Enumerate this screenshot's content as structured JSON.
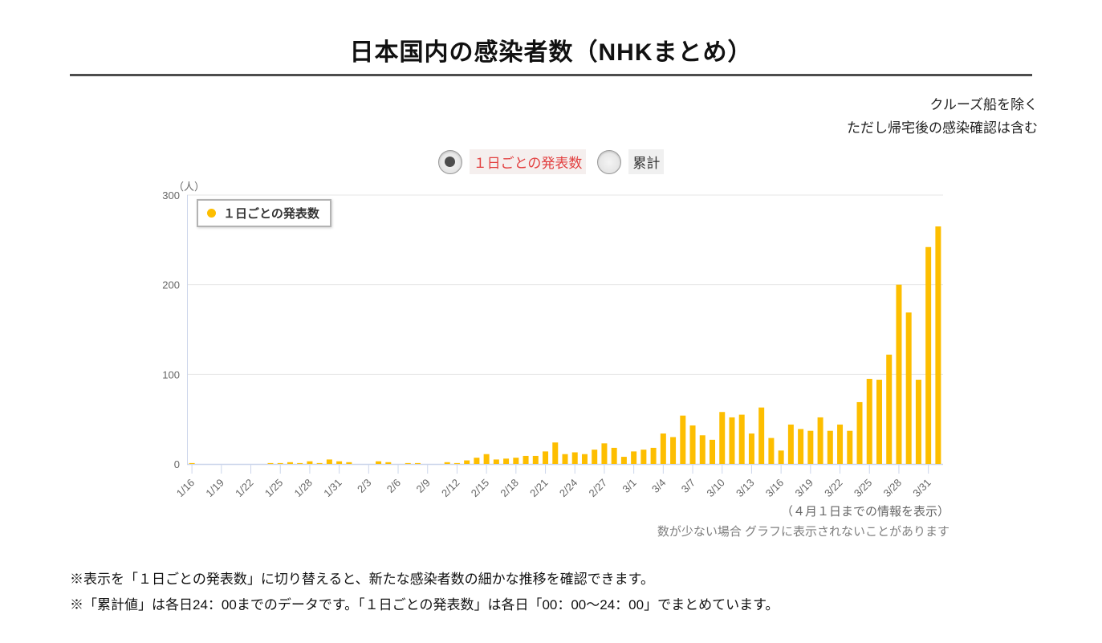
{
  "header": {
    "title": "日本国内の感染者数（NHKまとめ）"
  },
  "notes": {
    "exclusion_line1": "クルーズ船を除く",
    "exclusion_line2": "ただし帰宅後の感染確認は含む",
    "data_through": "（４月１日までの情報を表示）",
    "small_numbers": "数が少ない場合 グラフに表示されないことがあります"
  },
  "controls": {
    "daily": {
      "label": "１日ごとの発表数",
      "selected": true,
      "color": "#e23e3e"
    },
    "cumulative": {
      "label": "累計",
      "selected": false
    }
  },
  "legend": {
    "label": "１日ごとの発表数",
    "marker_color": "#fdbe00"
  },
  "footer": {
    "line1": "※表示を「１日ごとの発表数」に切り替えると、新たな感染者数の細かな推移を確認できます。",
    "line2": "※「累計値」は各日24：00までのデータです。「１日ごとの発表数」は各日「00：00〜24：00」でまとめています。"
  },
  "chart_data": {
    "type": "bar",
    "title": "日本国内の感染者数（NHKまとめ）",
    "series_name": "１日ごとの発表数",
    "unit_label": "（人）",
    "ylabel": "人",
    "ylim": [
      0,
      300
    ],
    "yticks": [
      0,
      100,
      200,
      300
    ],
    "grid": true,
    "legend_position": "top-left",
    "bar_color": "#fdbe00",
    "axis_color": "#ccd6eb",
    "grid_color": "#e6e6e6",
    "tick_label_every": 3,
    "categories": [
      "1/16",
      "1/17",
      "1/18",
      "1/19",
      "1/20",
      "1/21",
      "1/22",
      "1/23",
      "1/24",
      "1/25",
      "1/26",
      "1/27",
      "1/28",
      "1/29",
      "1/30",
      "1/31",
      "2/1",
      "2/2",
      "2/3",
      "2/4",
      "2/5",
      "2/6",
      "2/7",
      "2/8",
      "2/9",
      "2/10",
      "2/11",
      "2/12",
      "2/13",
      "2/14",
      "2/15",
      "2/16",
      "2/17",
      "2/18",
      "2/19",
      "2/20",
      "2/21",
      "2/22",
      "2/23",
      "2/24",
      "2/25",
      "2/26",
      "2/27",
      "2/28",
      "2/29",
      "3/1",
      "3/2",
      "3/3",
      "3/4",
      "3/5",
      "3/6",
      "3/7",
      "3/8",
      "3/9",
      "3/10",
      "3/11",
      "3/12",
      "3/13",
      "3/14",
      "3/15",
      "3/16",
      "3/17",
      "3/18",
      "3/19",
      "3/20",
      "3/21",
      "3/22",
      "3/23",
      "3/24",
      "3/25",
      "3/26",
      "3/27",
      "3/28",
      "3/29",
      "3/30",
      "3/31",
      "4/1"
    ],
    "values": [
      1,
      0,
      0,
      0,
      0,
      0,
      0,
      0,
      1,
      1,
      2,
      1,
      3,
      1,
      5,
      3,
      2,
      0,
      0,
      3,
      2,
      0,
      1,
      1,
      0,
      0,
      2,
      1,
      4,
      7,
      11,
      5,
      6,
      7,
      9,
      9,
      14,
      24,
      11,
      13,
      11,
      16,
      23,
      18,
      8,
      14,
      16,
      18,
      34,
      30,
      54,
      43,
      32,
      27,
      58,
      52,
      55,
      34,
      63,
      29,
      15,
      44,
      39,
      37,
      52,
      37,
      44,
      37,
      69,
      95,
      94,
      122,
      200,
      169,
      94,
      242,
      265
    ]
  }
}
